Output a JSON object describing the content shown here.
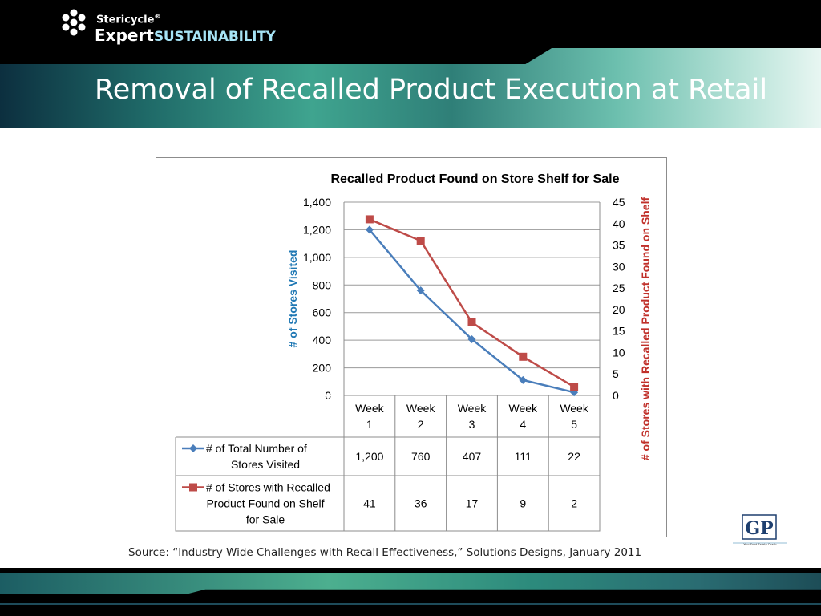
{
  "header": {
    "logo_top": "Stericycle",
    "logo_registered": "®",
    "logo_bottom_prefix": "Expert",
    "logo_bottom_suffix": "SUSTAINABILITY",
    "title": "Removal of Recalled Product Execution at Retail"
  },
  "colors": {
    "series1": "#4a7ebb",
    "series2": "#be4b48",
    "ylabel_left": "#1f78b4",
    "ylabel_right": "#c0302a"
  },
  "chart_data": {
    "type": "line",
    "title": "Recalled Product Found on Store Shelf for Sale",
    "ylabel": "# of Stores Visited",
    "y2label": "# of Stores with Recalled Product Found on Shelf",
    "ylim": [
      0,
      1400
    ],
    "yticks": [
      "0",
      "200",
      "400",
      "600",
      "800",
      "1,000",
      "1,200",
      "1,400"
    ],
    "y2lim": [
      0,
      45
    ],
    "y2ticks": [
      "0",
      "5",
      "10",
      "15",
      "20",
      "25",
      "30",
      "35",
      "40",
      "45"
    ],
    "categories": [
      [
        "Week",
        "1"
      ],
      [
        "Week",
        "2"
      ],
      [
        "Week",
        "3"
      ],
      [
        "Week",
        "4"
      ],
      [
        "Week",
        "5"
      ]
    ],
    "grid": true,
    "legend": "data-table",
    "series": [
      {
        "name": [
          "# of Total Number of",
          "Stores Visited"
        ],
        "axis": "left",
        "marker": "diamond",
        "values": [
          1200,
          760,
          407,
          111,
          22
        ],
        "labels": [
          "1,200",
          "760",
          "407",
          "111",
          "22"
        ]
      },
      {
        "name": [
          "# of Stores with Recalled",
          "Product Found on Shelf",
          "for Sale"
        ],
        "axis": "right",
        "marker": "square",
        "values": [
          41,
          36,
          17,
          9,
          2
        ],
        "labels": [
          "41",
          "36",
          "17",
          "9",
          "2"
        ]
      }
    ]
  },
  "source": "Source: “Industry Wide Challenges with Recall Effectiveness,” Solutions Designs, January 2011",
  "gp_logo": {
    "letters": "GP",
    "tagline": "Your Food Safety Coach"
  }
}
